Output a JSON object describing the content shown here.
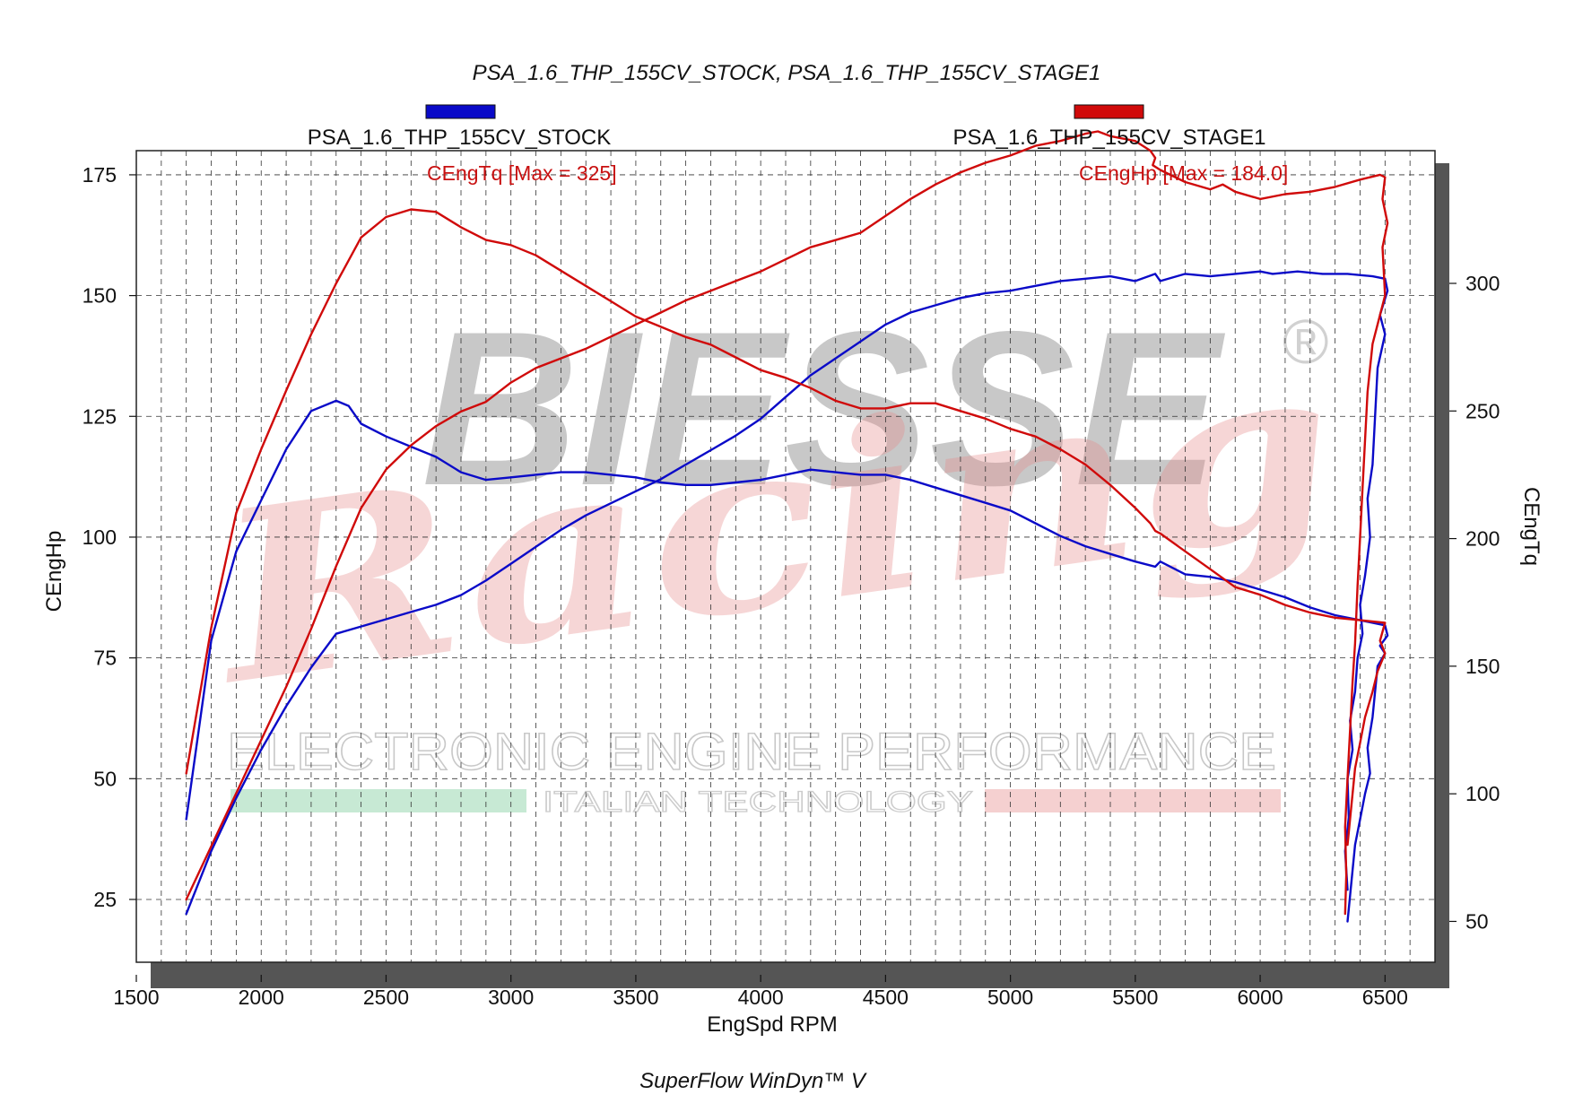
{
  "header": {
    "title": "PSA_1.6_THP_155CV_STOCK, PSA_1.6_THP_155CV_STAGE1",
    "footer": "SuperFlow WinDyn™ V"
  },
  "legend": [
    {
      "name": "PSA_1.6_THP_155CV_STOCK",
      "color": "#0a0ac8"
    },
    {
      "name": "PSA_1.6_THP_155CV_STAGE1",
      "color": "#d00a0a"
    }
  ],
  "annotations": {
    "torque_max": "CEngTq [Max = 325]",
    "power_max": "CEngHp [Max = 184.0]"
  },
  "watermark": {
    "brand": "BIESSE",
    "registered": "®",
    "script": "Racing",
    "tagline": "ELECTRONIC ENGINE PERFORMANCE",
    "subtagline": "ITALIAN TECHNOLOGY"
  },
  "colors": {
    "stock": "#0a0ac8",
    "stage1": "#d00a0a",
    "grid": "#333333",
    "shadow": "#555555"
  },
  "chart_data": {
    "type": "line",
    "xlabel": "EngSpd RPM",
    "ylabel": "CEngHp",
    "y2label": "CEngTq",
    "xlim": [
      1500,
      6700
    ],
    "ylim": [
      12,
      180
    ],
    "y2lim": [
      34,
      352
    ],
    "xticks": [
      1500,
      2000,
      2500,
      3000,
      3500,
      4000,
      4500,
      5000,
      5500,
      6000,
      6500
    ],
    "yticks": [
      25,
      50,
      75,
      100,
      125,
      150,
      175
    ],
    "y2ticks": [
      50,
      100,
      150,
      200,
      250,
      300
    ],
    "grid": true,
    "series": [
      {
        "name": "PSA_1.6_THP_155CV_STOCK",
        "quantity": "CEngHp",
        "axis": "left",
        "color": "#0a0ac8",
        "points": [
          [
            1700,
            22
          ],
          [
            1800,
            35
          ],
          [
            1900,
            46
          ],
          [
            2000,
            56
          ],
          [
            2100,
            65
          ],
          [
            2200,
            73
          ],
          [
            2300,
            80
          ],
          [
            2400,
            81.5
          ],
          [
            2500,
            83
          ],
          [
            2600,
            84.5
          ],
          [
            2700,
            86
          ],
          [
            2800,
            88
          ],
          [
            2900,
            91
          ],
          [
            3000,
            94.5
          ],
          [
            3100,
            98
          ],
          [
            3200,
            101.5
          ],
          [
            3300,
            104.5
          ],
          [
            3400,
            107
          ],
          [
            3500,
            109.5
          ],
          [
            3600,
            112
          ],
          [
            3700,
            115
          ],
          [
            3800,
            118
          ],
          [
            3900,
            121
          ],
          [
            4000,
            124.5
          ],
          [
            4100,
            129
          ],
          [
            4200,
            133.5
          ],
          [
            4300,
            137
          ],
          [
            4400,
            140.5
          ],
          [
            4500,
            144
          ],
          [
            4600,
            146.5
          ],
          [
            4700,
            148
          ],
          [
            4800,
            149.5
          ],
          [
            4900,
            150.5
          ],
          [
            5000,
            151
          ],
          [
            5100,
            152
          ],
          [
            5200,
            153
          ],
          [
            5300,
            153.5
          ],
          [
            5400,
            154
          ],
          [
            5500,
            153
          ],
          [
            5580,
            154.5
          ],
          [
            5600,
            153
          ],
          [
            5700,
            154.5
          ],
          [
            5800,
            154
          ],
          [
            5900,
            154.5
          ],
          [
            6000,
            155
          ],
          [
            6050,
            154.5
          ],
          [
            6150,
            155
          ],
          [
            6250,
            154.5
          ],
          [
            6350,
            154.5
          ],
          [
            6450,
            154
          ],
          [
            6500,
            153.5
          ],
          [
            6510,
            151
          ],
          [
            6480,
            146
          ],
          [
            6500,
            142
          ],
          [
            6470,
            135
          ],
          [
            6460,
            125
          ],
          [
            6450,
            115
          ],
          [
            6430,
            108
          ],
          [
            6440,
            100
          ],
          [
            6420,
            92
          ],
          [
            6400,
            86
          ],
          [
            6410,
            80
          ],
          [
            6390,
            75
          ],
          [
            6380,
            68
          ],
          [
            6360,
            62
          ],
          [
            6370,
            56
          ],
          [
            6350,
            50
          ],
          [
            6355,
            42
          ],
          [
            6340,
            35
          ],
          [
            6350,
            27
          ]
        ]
      },
      {
        "name": "PSA_1.6_THP_155CV_STOCK",
        "quantity": "CEngTq",
        "axis": "right",
        "color": "#0a0ac8",
        "points": [
          [
            1700,
            90
          ],
          [
            1800,
            160
          ],
          [
            1900,
            195
          ],
          [
            2000,
            215
          ],
          [
            2100,
            235
          ],
          [
            2200,
            250
          ],
          [
            2300,
            254
          ],
          [
            2350,
            252
          ],
          [
            2400,
            245
          ],
          [
            2500,
            240
          ],
          [
            2600,
            236
          ],
          [
            2700,
            232
          ],
          [
            2800,
            226
          ],
          [
            2900,
            223
          ],
          [
            3000,
            224
          ],
          [
            3100,
            225
          ],
          [
            3200,
            226
          ],
          [
            3300,
            226
          ],
          [
            3400,
            225
          ],
          [
            3500,
            224
          ],
          [
            3600,
            222
          ],
          [
            3700,
            221
          ],
          [
            3800,
            221
          ],
          [
            3900,
            222
          ],
          [
            4000,
            223
          ],
          [
            4100,
            225
          ],
          [
            4200,
            227
          ],
          [
            4300,
            226
          ],
          [
            4400,
            225
          ],
          [
            4500,
            225
          ],
          [
            4600,
            223
          ],
          [
            4700,
            220
          ],
          [
            4800,
            217
          ],
          [
            4900,
            214
          ],
          [
            5000,
            211
          ],
          [
            5100,
            206
          ],
          [
            5200,
            201
          ],
          [
            5300,
            197
          ],
          [
            5400,
            194
          ],
          [
            5500,
            191
          ],
          [
            5580,
            189
          ],
          [
            5600,
            191
          ],
          [
            5700,
            186
          ],
          [
            5800,
            185
          ],
          [
            5900,
            183
          ],
          [
            6000,
            180
          ],
          [
            6100,
            177
          ],
          [
            6200,
            173
          ],
          [
            6300,
            170
          ],
          [
            6400,
            168
          ],
          [
            6500,
            166
          ],
          [
            6510,
            162
          ],
          [
            6480,
            158
          ],
          [
            6500,
            155
          ],
          [
            6470,
            150
          ],
          [
            6460,
            140
          ],
          [
            6450,
            130
          ],
          [
            6430,
            118
          ],
          [
            6440,
            108
          ],
          [
            6420,
            100
          ],
          [
            6400,
            90
          ],
          [
            6380,
            80
          ],
          [
            6370,
            70
          ],
          [
            6360,
            60
          ],
          [
            6350,
            50
          ]
        ]
      },
      {
        "name": "PSA_1.6_THP_155CV_STAGE1",
        "quantity": "CEngHp",
        "axis": "left",
        "color": "#d00a0a",
        "points": [
          [
            1700,
            25
          ],
          [
            1800,
            36
          ],
          [
            1900,
            47
          ],
          [
            2000,
            58
          ],
          [
            2100,
            69
          ],
          [
            2200,
            81
          ],
          [
            2300,
            94
          ],
          [
            2400,
            106
          ],
          [
            2500,
            114
          ],
          [
            2600,
            119
          ],
          [
            2700,
            123
          ],
          [
            2800,
            126
          ],
          [
            2900,
            128
          ],
          [
            3000,
            132
          ],
          [
            3100,
            135
          ],
          [
            3200,
            137
          ],
          [
            3300,
            139
          ],
          [
            3400,
            141.5
          ],
          [
            3500,
            144
          ],
          [
            3600,
            146.5
          ],
          [
            3700,
            149
          ],
          [
            3800,
            151
          ],
          [
            3900,
            153
          ],
          [
            4000,
            155
          ],
          [
            4100,
            157.5
          ],
          [
            4200,
            160
          ],
          [
            4300,
            161.5
          ],
          [
            4400,
            163
          ],
          [
            4500,
            166.5
          ],
          [
            4600,
            170
          ],
          [
            4700,
            173
          ],
          [
            4800,
            175.5
          ],
          [
            4900,
            177.5
          ],
          [
            5000,
            179
          ],
          [
            5100,
            181
          ],
          [
            5200,
            182
          ],
          [
            5300,
            183.5
          ],
          [
            5350,
            184
          ],
          [
            5400,
            183
          ],
          [
            5500,
            182
          ],
          [
            5560,
            180
          ],
          [
            5580,
            178.5
          ],
          [
            5570,
            177
          ],
          [
            5600,
            176
          ],
          [
            5700,
            173.5
          ],
          [
            5800,
            172
          ],
          [
            5850,
            173
          ],
          [
            5900,
            171.5
          ],
          [
            6000,
            170
          ],
          [
            6100,
            171
          ],
          [
            6200,
            171.5
          ],
          [
            6300,
            172.5
          ],
          [
            6400,
            174
          ],
          [
            6480,
            175
          ],
          [
            6500,
            174.5
          ],
          [
            6490,
            170
          ],
          [
            6510,
            165
          ],
          [
            6490,
            160
          ],
          [
            6500,
            150
          ],
          [
            6450,
            140
          ],
          [
            6430,
            130
          ],
          [
            6420,
            120
          ],
          [
            6410,
            110
          ],
          [
            6400,
            100
          ],
          [
            6390,
            90
          ],
          [
            6380,
            78
          ],
          [
            6370,
            70
          ],
          [
            6360,
            60
          ],
          [
            6350,
            50
          ],
          [
            6340,
            40
          ],
          [
            6345,
            30
          ],
          [
            6340,
            22
          ]
        ]
      },
      {
        "name": "PSA_1.6_THP_155CV_STAGE1",
        "quantity": "CEngTq",
        "axis": "right",
        "color": "#d00a0a",
        "points": [
          [
            1700,
            108
          ],
          [
            1800,
            165
          ],
          [
            1900,
            210
          ],
          [
            2000,
            235
          ],
          [
            2100,
            258
          ],
          [
            2200,
            280
          ],
          [
            2300,
            300
          ],
          [
            2400,
            318
          ],
          [
            2500,
            326
          ],
          [
            2600,
            329
          ],
          [
            2700,
            328
          ],
          [
            2800,
            322
          ],
          [
            2900,
            317
          ],
          [
            3000,
            315
          ],
          [
            3100,
            311
          ],
          [
            3200,
            305
          ],
          [
            3300,
            299
          ],
          [
            3400,
            293
          ],
          [
            3500,
            287
          ],
          [
            3600,
            283
          ],
          [
            3700,
            279
          ],
          [
            3800,
            276
          ],
          [
            3900,
            271
          ],
          [
            4000,
            266
          ],
          [
            4100,
            263
          ],
          [
            4200,
            259
          ],
          [
            4300,
            254
          ],
          [
            4400,
            251
          ],
          [
            4500,
            251
          ],
          [
            4600,
            253
          ],
          [
            4700,
            253
          ],
          [
            4800,
            250
          ],
          [
            4900,
            247
          ],
          [
            5000,
            243
          ],
          [
            5100,
            240
          ],
          [
            5200,
            235
          ],
          [
            5300,
            229
          ],
          [
            5400,
            221
          ],
          [
            5500,
            212
          ],
          [
            5560,
            206
          ],
          [
            5580,
            203
          ],
          [
            5600,
            202
          ],
          [
            5700,
            195
          ],
          [
            5800,
            188
          ],
          [
            5900,
            181
          ],
          [
            6000,
            178
          ],
          [
            6100,
            174
          ],
          [
            6200,
            171
          ],
          [
            6300,
            169
          ],
          [
            6400,
            168
          ],
          [
            6500,
            167
          ],
          [
            6480,
            160
          ],
          [
            6500,
            155
          ],
          [
            6470,
            148
          ],
          [
            6450,
            140
          ],
          [
            6420,
            130
          ],
          [
            6400,
            120
          ],
          [
            6380,
            110
          ],
          [
            6370,
            100
          ],
          [
            6360,
            90
          ],
          [
            6350,
            80
          ]
        ]
      }
    ]
  }
}
